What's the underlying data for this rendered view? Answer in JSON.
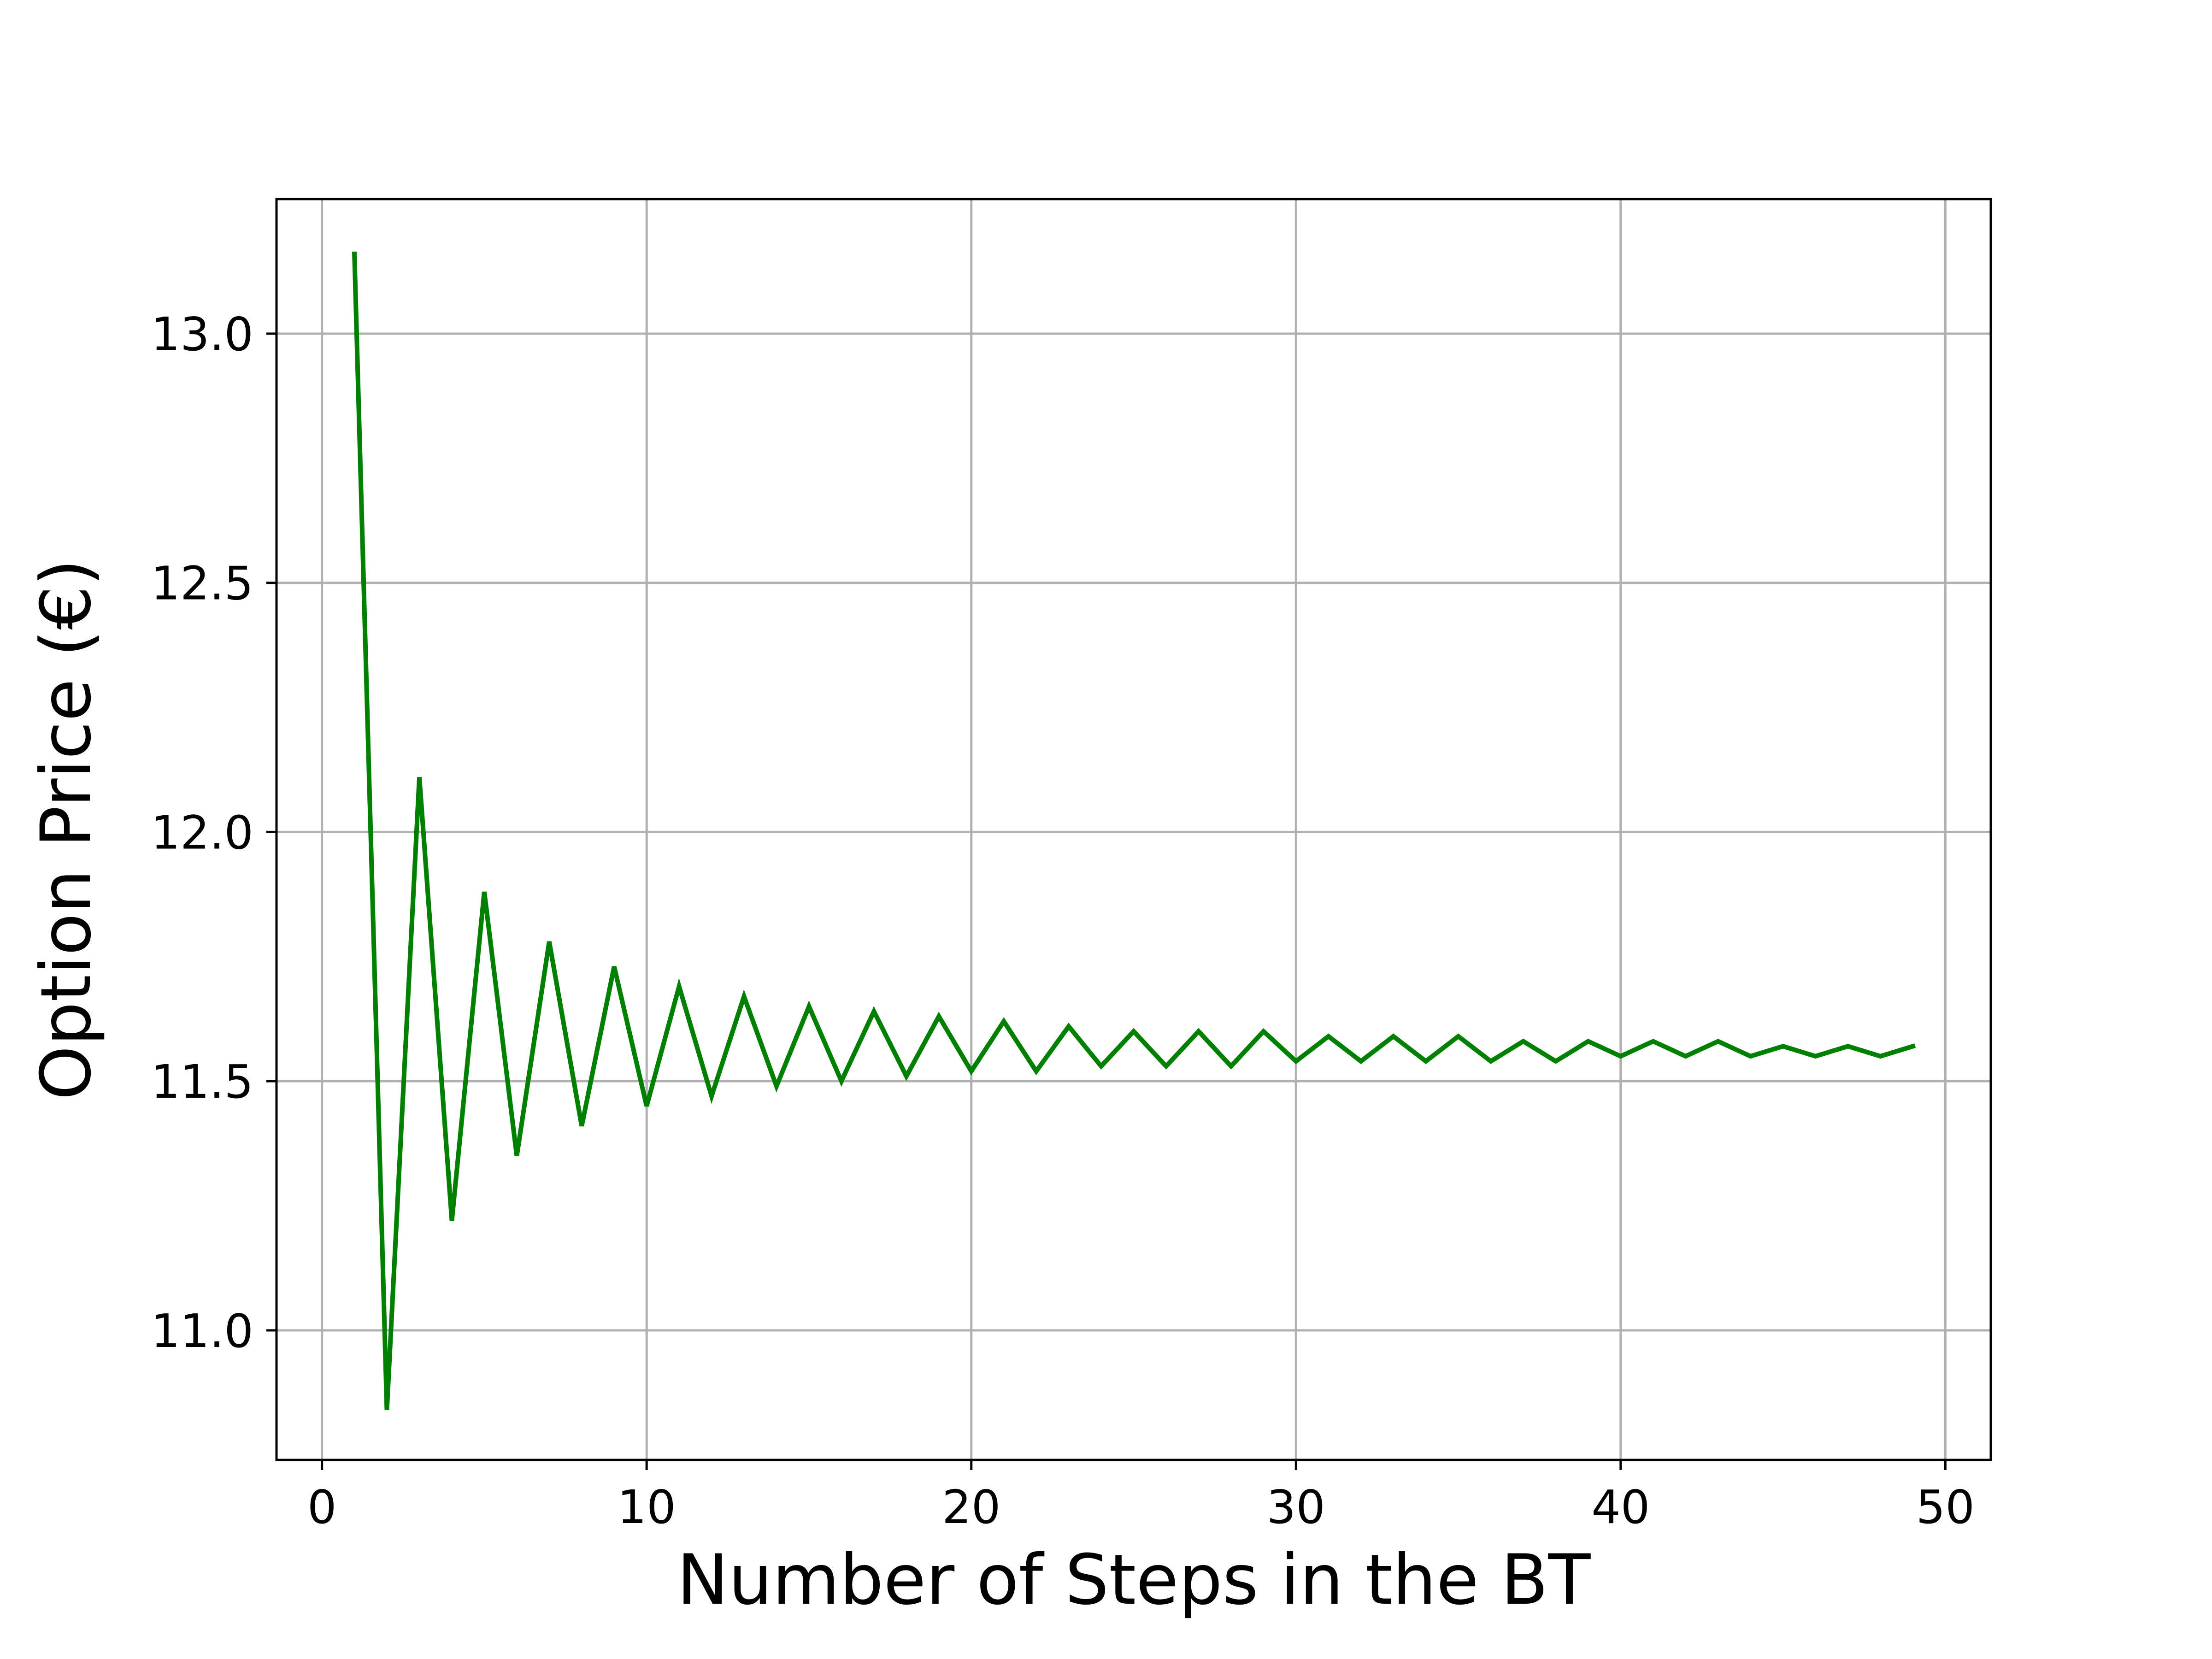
{
  "chart_data": {
    "type": "line",
    "title": "",
    "xlabel": "Number of Steps in the BT",
    "ylabel": "Option Price (€)",
    "xlim": [
      -1.4,
      51.4
    ],
    "ylim": [
      10.74,
      13.27
    ],
    "grid": true,
    "xticks": [
      0,
      10,
      20,
      30,
      40,
      50
    ],
    "xtick_labels": [
      "0",
      "10",
      "20",
      "30",
      "40",
      "50"
    ],
    "yticks": [
      11.0,
      11.5,
      12.0,
      12.5,
      13.0
    ],
    "ytick_labels": [
      "11.0",
      "11.5",
      "12.0",
      "12.5",
      "13.0"
    ],
    "colors": {
      "line": "#008000",
      "grid": "#b0b0b0",
      "frame": "#000000"
    },
    "series": [
      {
        "x": [
          1,
          2,
          3,
          4,
          5,
          6,
          7,
          8,
          9,
          10,
          11,
          12,
          13,
          14,
          15,
          16,
          17,
          18,
          19,
          20,
          21,
          22,
          23,
          24,
          25,
          26,
          27,
          28,
          29,
          30,
          31,
          32,
          33,
          34,
          35,
          36,
          37,
          38,
          39,
          40,
          41,
          42,
          43,
          44,
          45,
          46,
          47,
          48,
          49
        ],
        "values": [
          13.16,
          10.84,
          12.11,
          11.22,
          11.88,
          11.35,
          11.78,
          11.41,
          11.73,
          11.45,
          11.69,
          11.47,
          11.67,
          11.49,
          11.65,
          11.5,
          11.64,
          11.51,
          11.63,
          11.52,
          11.62,
          11.52,
          11.61,
          11.53,
          11.6,
          11.53,
          11.6,
          11.53,
          11.6,
          11.54,
          11.59,
          11.54,
          11.59,
          11.54,
          11.59,
          11.54,
          11.58,
          11.54,
          11.58,
          11.55,
          11.58,
          11.55,
          11.58,
          11.55,
          11.57,
          11.55,
          11.57,
          11.55,
          11.57
        ]
      }
    ]
  }
}
